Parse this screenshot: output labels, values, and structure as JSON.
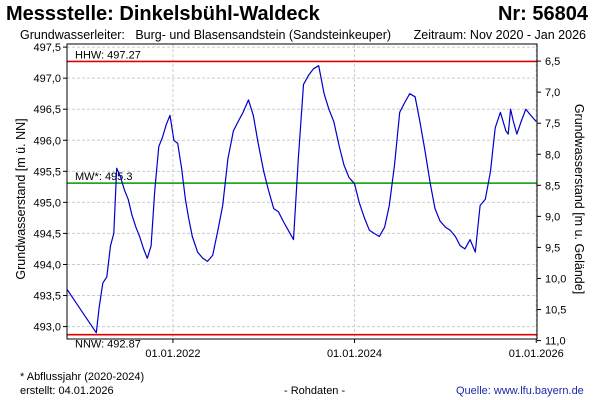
{
  "header": {
    "station": "Messstelle: Dinkelsbühl-Waldeck",
    "number": "Nr: 56804",
    "leiter_label": "Grundwasserleiter:",
    "leiter_value": "Burg- und Blasensandstein (Sandsteinkeuper)",
    "zeitraum": "Zeitraum: Nov 2020 - Jan 2026"
  },
  "footer": {
    "footnote": "* Abflussjahr (2020-2024)",
    "created": "erstellt:  04.01.2026",
    "raw": "- Rohdaten -",
    "source_prefix": "Quelle: ",
    "source_link": "www.lfu.bayern.de"
  },
  "colors": {
    "series": "#0000cc",
    "hhw": "#e00000",
    "nnw": "#e00000",
    "mw": "#009900",
    "grid": "#cccccc"
  },
  "chart_data": {
    "type": "line",
    "ylabel": "Grundwasserstand [m ü. NN]",
    "ylabel_right": "Grundwasserstand [m u. Gelände]",
    "x_range": [
      "2020-11-01",
      "2026-01-04"
    ],
    "x_ticks": [
      {
        "date": "2022-01-01",
        "label": "01.01.2022"
      },
      {
        "date": "2024-01-01",
        "label": "01.01.2024"
      },
      {
        "date": "2026-01-01",
        "label": "01.01.2026"
      }
    ],
    "ylim": [
      492.8,
      497.55
    ],
    "y_ticks": [
      "497,5",
      "497,0",
      "496,5",
      "496,0",
      "495,5",
      "495,0",
      "494,5",
      "494,0",
      "493,5",
      "493,0"
    ],
    "y_right_ticks": [
      "6,5",
      "7,0",
      "7,5",
      "8,0",
      "8,5",
      "9,0",
      "9,5",
      "10,0",
      "10,5",
      "11,0"
    ],
    "grid": true,
    "reference_lines": [
      {
        "key": "hhw",
        "label": "HHW: 497.27",
        "value": 497.27
      },
      {
        "key": "mw",
        "label": "MW*: 495.3",
        "value": 495.31
      },
      {
        "key": "nnw",
        "label": "NNW: 492.87",
        "value": 492.87
      }
    ],
    "series": [
      {
        "x": [
          "2020-11-01",
          "2021-02-27",
          "2021-03-10",
          "2021-03-25",
          "2021-04-10",
          "2021-04-25",
          "2021-05-08",
          "2021-05-20",
          "2021-06-05",
          "2021-06-20",
          "2021-07-05",
          "2021-07-20",
          "2021-08-05",
          "2021-08-20",
          "2021-09-05",
          "2021-09-20",
          "2021-10-05",
          "2021-10-20",
          "2021-11-05",
          "2021-11-20",
          "2021-12-05",
          "2021-12-20",
          "2022-01-05",
          "2022-01-20",
          "2022-02-05",
          "2022-02-20",
          "2022-03-05",
          "2022-03-20",
          "2022-04-10",
          "2022-05-01",
          "2022-05-20",
          "2022-06-10",
          "2022-07-01",
          "2022-07-20",
          "2022-08-10",
          "2022-09-01",
          "2022-09-20",
          "2022-10-10",
          "2022-11-01",
          "2022-11-20",
          "2022-12-10",
          "2023-01-01",
          "2023-01-20",
          "2023-02-10",
          "2023-03-01",
          "2023-03-20",
          "2023-04-10",
          "2023-05-01",
          "2023-05-20",
          "2023-06-10",
          "2023-07-01",
          "2023-07-20",
          "2023-08-10",
          "2023-09-01",
          "2023-09-20",
          "2023-10-10",
          "2023-11-01",
          "2023-11-20",
          "2023-12-10",
          "2024-01-01",
          "2024-01-20",
          "2024-02-10",
          "2024-03-01",
          "2024-03-20",
          "2024-04-10",
          "2024-05-01",
          "2024-05-20",
          "2024-06-10",
          "2024-07-01",
          "2024-07-20",
          "2024-08-10",
          "2024-09-01",
          "2024-09-20",
          "2024-10-10",
          "2024-11-01",
          "2024-11-20",
          "2024-12-10",
          "2025-01-01",
          "2025-01-20",
          "2025-02-10",
          "2025-03-01",
          "2025-03-20",
          "2025-04-10",
          "2025-05-01",
          "2025-05-20",
          "2025-06-10",
          "2025-07-01",
          "2025-07-20",
          "2025-08-10",
          "2025-09-01",
          "2025-09-10",
          "2025-09-20",
          "2025-10-01",
          "2025-10-15",
          "2025-11-01",
          "2025-11-20",
          "2025-12-10",
          "2026-01-01"
        ],
        "y": [
          493.6,
          492.9,
          493.3,
          493.7,
          493.8,
          494.3,
          494.5,
          495.55,
          495.4,
          495.2,
          495.05,
          494.8,
          494.6,
          494.45,
          494.25,
          494.1,
          494.3,
          495.2,
          495.9,
          496.05,
          496.25,
          496.4,
          496.0,
          495.95,
          495.55,
          495.05,
          494.75,
          494.45,
          494.2,
          494.1,
          494.05,
          494.15,
          494.55,
          494.95,
          495.7,
          496.15,
          496.3,
          496.45,
          496.65,
          496.4,
          495.95,
          495.5,
          495.2,
          494.9,
          494.85,
          494.7,
          494.55,
          494.4,
          495.7,
          496.9,
          497.05,
          497.15,
          497.2,
          496.75,
          496.5,
          496.3,
          495.9,
          495.6,
          495.4,
          495.3,
          495.0,
          494.75,
          494.55,
          494.5,
          494.45,
          494.6,
          494.95,
          495.6,
          496.45,
          496.6,
          496.75,
          496.7,
          496.3,
          495.85,
          495.3,
          494.9,
          494.7,
          494.6,
          494.55,
          494.45,
          494.3,
          494.25,
          494.4,
          494.2,
          494.95,
          495.05,
          495.5,
          496.2,
          496.45,
          496.15,
          496.1,
          496.5,
          496.3,
          496.1,
          496.3,
          496.5,
          496.4,
          496.3
        ]
      }
    ]
  }
}
